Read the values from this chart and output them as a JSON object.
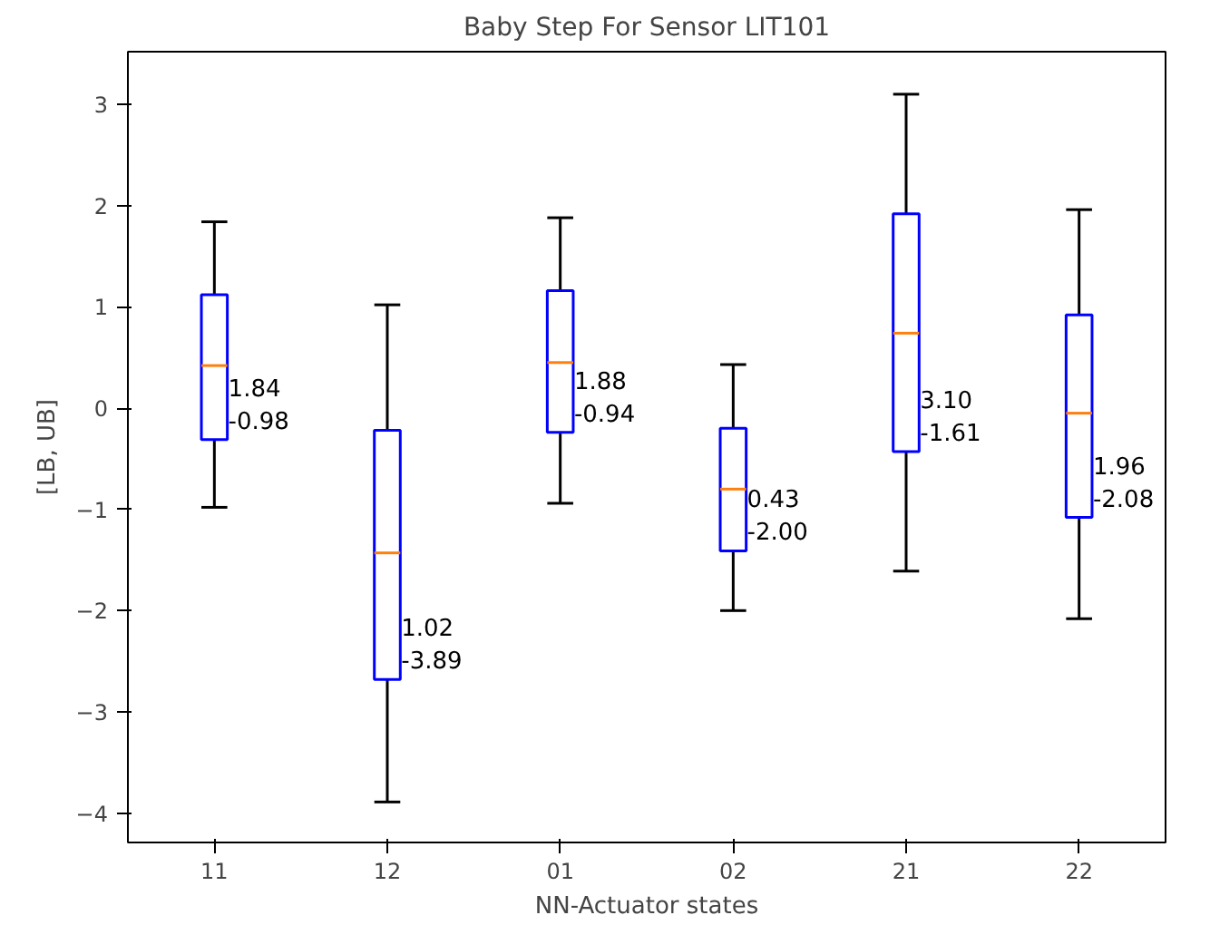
{
  "chart_data": {
    "type": "box",
    "title": "Baby Step For Sensor LIT101",
    "xlabel": "NN-Actuator states",
    "ylabel": "[LB, UB]",
    "categories": [
      "11",
      "12",
      "01",
      "02",
      "21",
      "22"
    ],
    "boxes": [
      {
        "low": -0.98,
        "q1": -0.31,
        "median": 0.42,
        "q3": 1.12,
        "high": 1.84
      },
      {
        "low": -3.89,
        "q1": -2.68,
        "median": -1.43,
        "q3": -0.22,
        "high": 1.02
      },
      {
        "low": -0.94,
        "q1": -0.24,
        "median": 0.45,
        "q3": 1.16,
        "high": 1.88
      },
      {
        "low": -2.0,
        "q1": -1.41,
        "median": -0.8,
        "q3": -0.2,
        "high": 0.43
      },
      {
        "low": -1.61,
        "q1": -0.43,
        "median": 0.74,
        "q3": 1.92,
        "high": 3.1
      },
      {
        "low": -2.08,
        "q1": -1.08,
        "median": -0.05,
        "q3": 0.92,
        "high": 1.96
      }
    ],
    "color": "#0000ff",
    "annotations": [
      "1.84\n-0.98",
      "1.02\n-3.89",
      "1.88\n-0.94",
      "0.43\n-2.00",
      "3.10\n-1.61",
      "1.96\n-2.08"
    ],
    "ylim": [
      -4.29,
      3.52
    ],
    "yticks": [
      -4,
      -3,
      -2,
      -1,
      0,
      1,
      2,
      3
    ],
    "grid": false
  }
}
